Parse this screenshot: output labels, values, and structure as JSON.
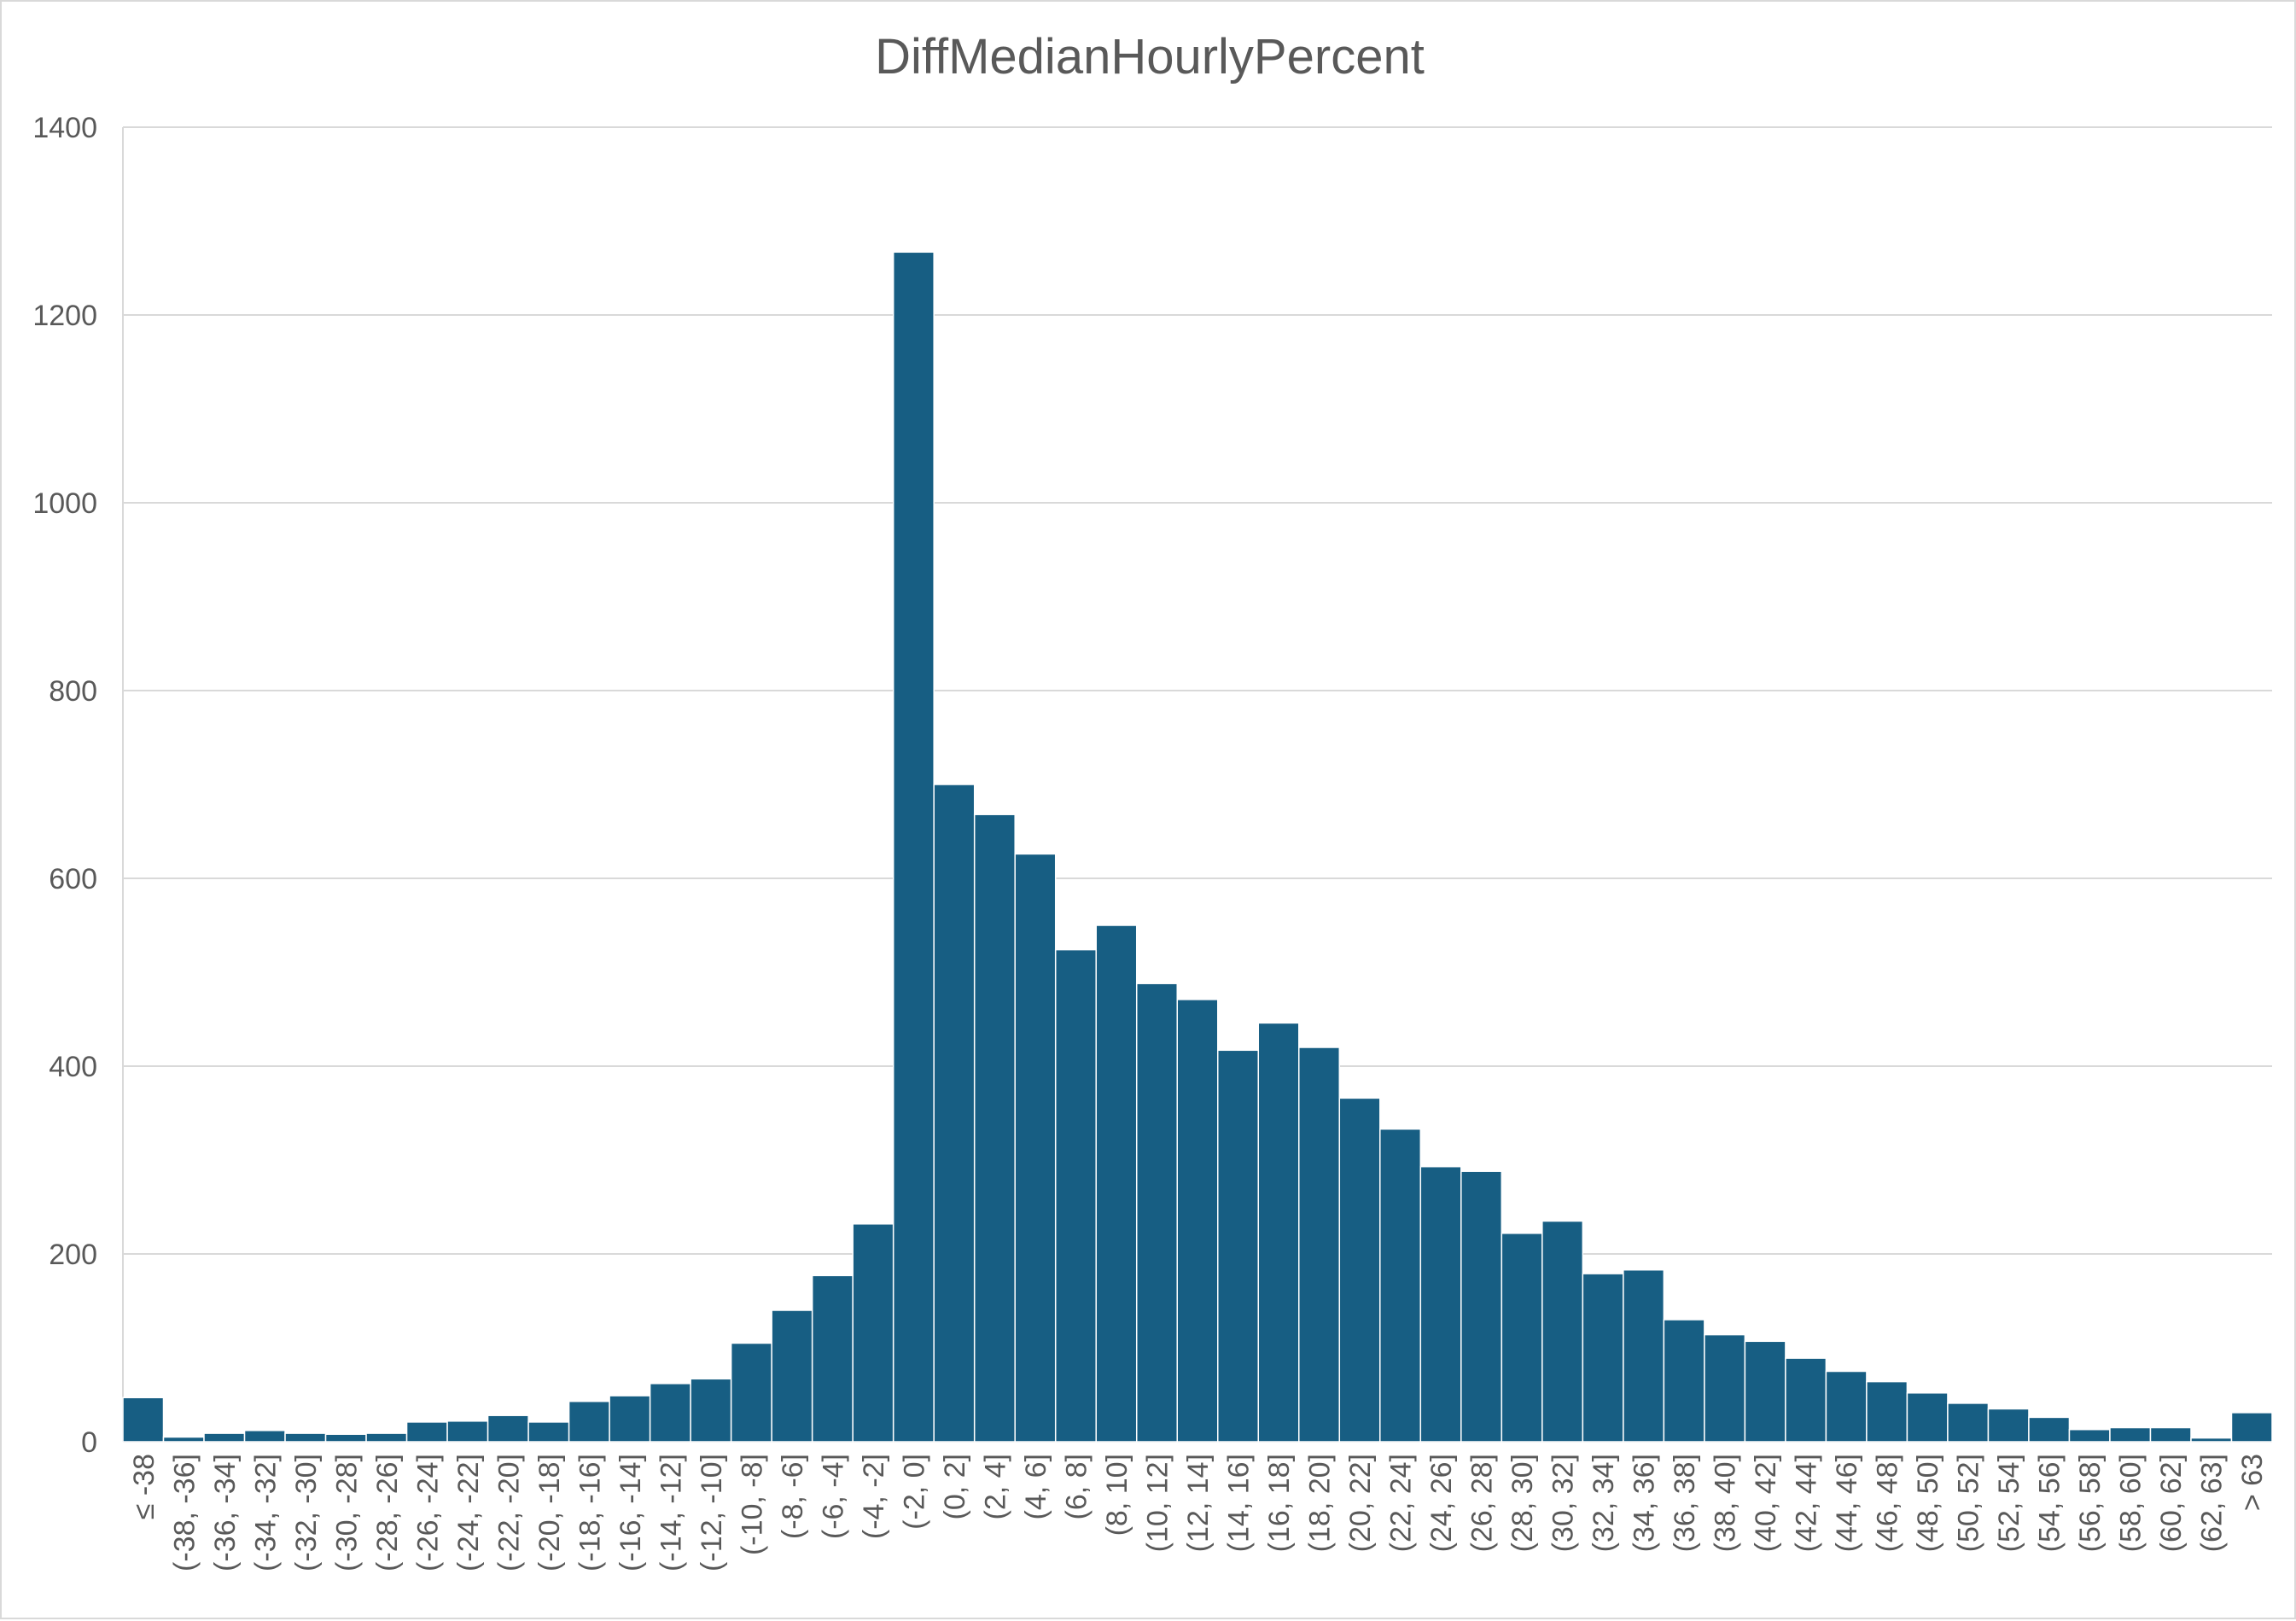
{
  "chart_data": {
    "type": "bar",
    "title": "DiffMedianHourlyPercent",
    "xlabel": "",
    "ylabel": "",
    "ylim": [
      0,
      1400
    ],
    "yticks": [
      "0",
      "200",
      "400",
      "600",
      "800",
      "1000",
      "1200",
      "1400"
    ],
    "grid": true,
    "legend": "none",
    "bar_color": "#175e83",
    "categories": [
      "≤ -38",
      "(-38, -36]",
      "(-36, -34]",
      "(-34, -32]",
      "(-32, -30]",
      "(-30, -28]",
      "(-28, -26]",
      "(-26, -24]",
      "(-24, -22]",
      "(-22, -20]",
      "(-20, -18]",
      "(-18, -16]",
      "(-16, -14]",
      "(-14, -12]",
      "(-12, -10]",
      "(-10, -8]",
      "(-8, -6]",
      "(-6, -4]",
      "(-4, -2]",
      "(-2, 0]",
      "(0, 2]",
      "(2, 4]",
      "(4, 6]",
      "(6, 8]",
      "(8, 10]",
      "(10, 12]",
      "(12, 14]",
      "(14, 16]",
      "(16, 18]",
      "(18, 20]",
      "(20, 22]",
      "(22, 24]",
      "(24, 26]",
      "(26, 28]",
      "(28, 30]",
      "(30, 32]",
      "(32, 34]",
      "(34, 36]",
      "(36, 38]",
      "(38, 40]",
      "(40, 42]",
      "(42, 44]",
      "(44, 46]",
      "(46, 48]",
      "(48, 50]",
      "(50, 52]",
      "(52, 54]",
      "(54, 56]",
      "(56, 58]",
      "(58, 60]",
      "(60, 62]",
      "(62, 63]",
      "> 63"
    ],
    "values": [
      47,
      5,
      9,
      12,
      9,
      8,
      9,
      21,
      22,
      28,
      21,
      43,
      49,
      62,
      67,
      105,
      140,
      177,
      232,
      1267,
      700,
      668,
      626,
      524,
      550,
      488,
      471,
      417,
      446,
      420,
      366,
      333,
      293,
      288,
      222,
      235,
      179,
      183,
      130,
      114,
      107,
      89,
      75,
      64,
      52,
      41,
      35,
      26,
      13,
      15,
      15,
      4,
      31
    ]
  }
}
